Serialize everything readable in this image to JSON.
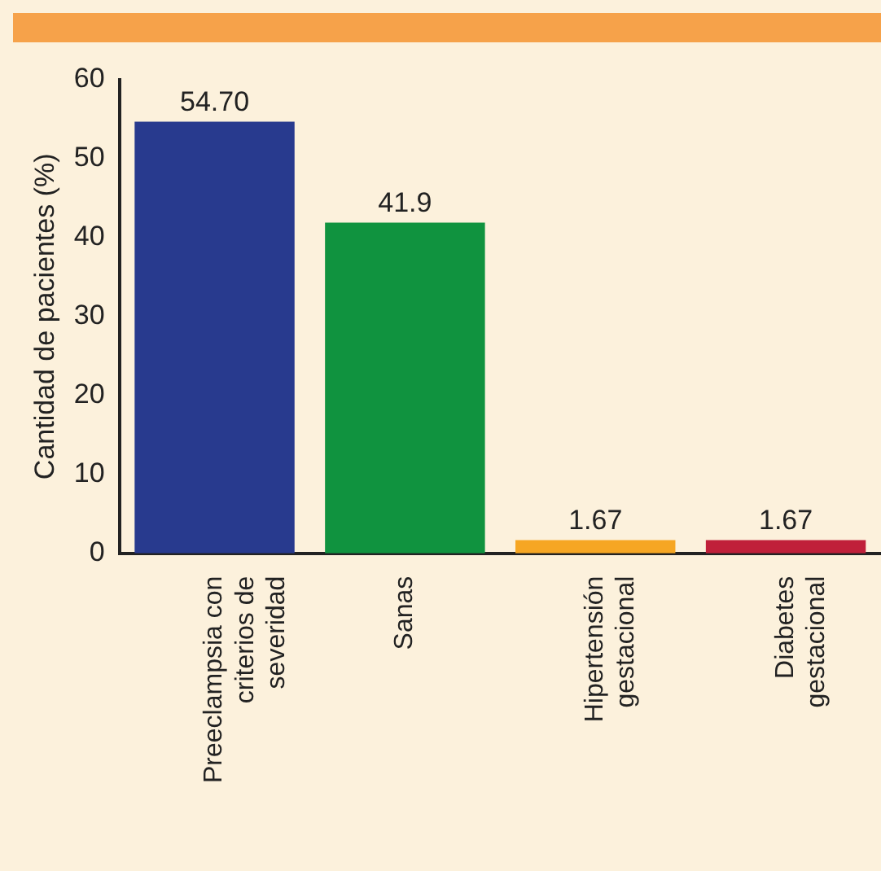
{
  "chart_data": {
    "type": "bar",
    "ylabel": "Cantidad de pacientes (%)",
    "categories": [
      "Preeclampsia con criterios de severidad",
      "Sanas",
      "Hipertensión gestacional",
      "Diabetes gestacional"
    ],
    "values": [
      54.7,
      41.9,
      1.67,
      1.67
    ],
    "value_labels": [
      "54.70",
      "41.9",
      "1.67",
      "1.67"
    ],
    "colors": [
      "#283a8e",
      "#10933f",
      "#f6a623",
      "#c0203a"
    ],
    "ylim": [
      0,
      60
    ],
    "yticks": [
      0,
      10,
      20,
      30,
      40,
      50,
      60
    ],
    "grid": false,
    "legend": false
  }
}
